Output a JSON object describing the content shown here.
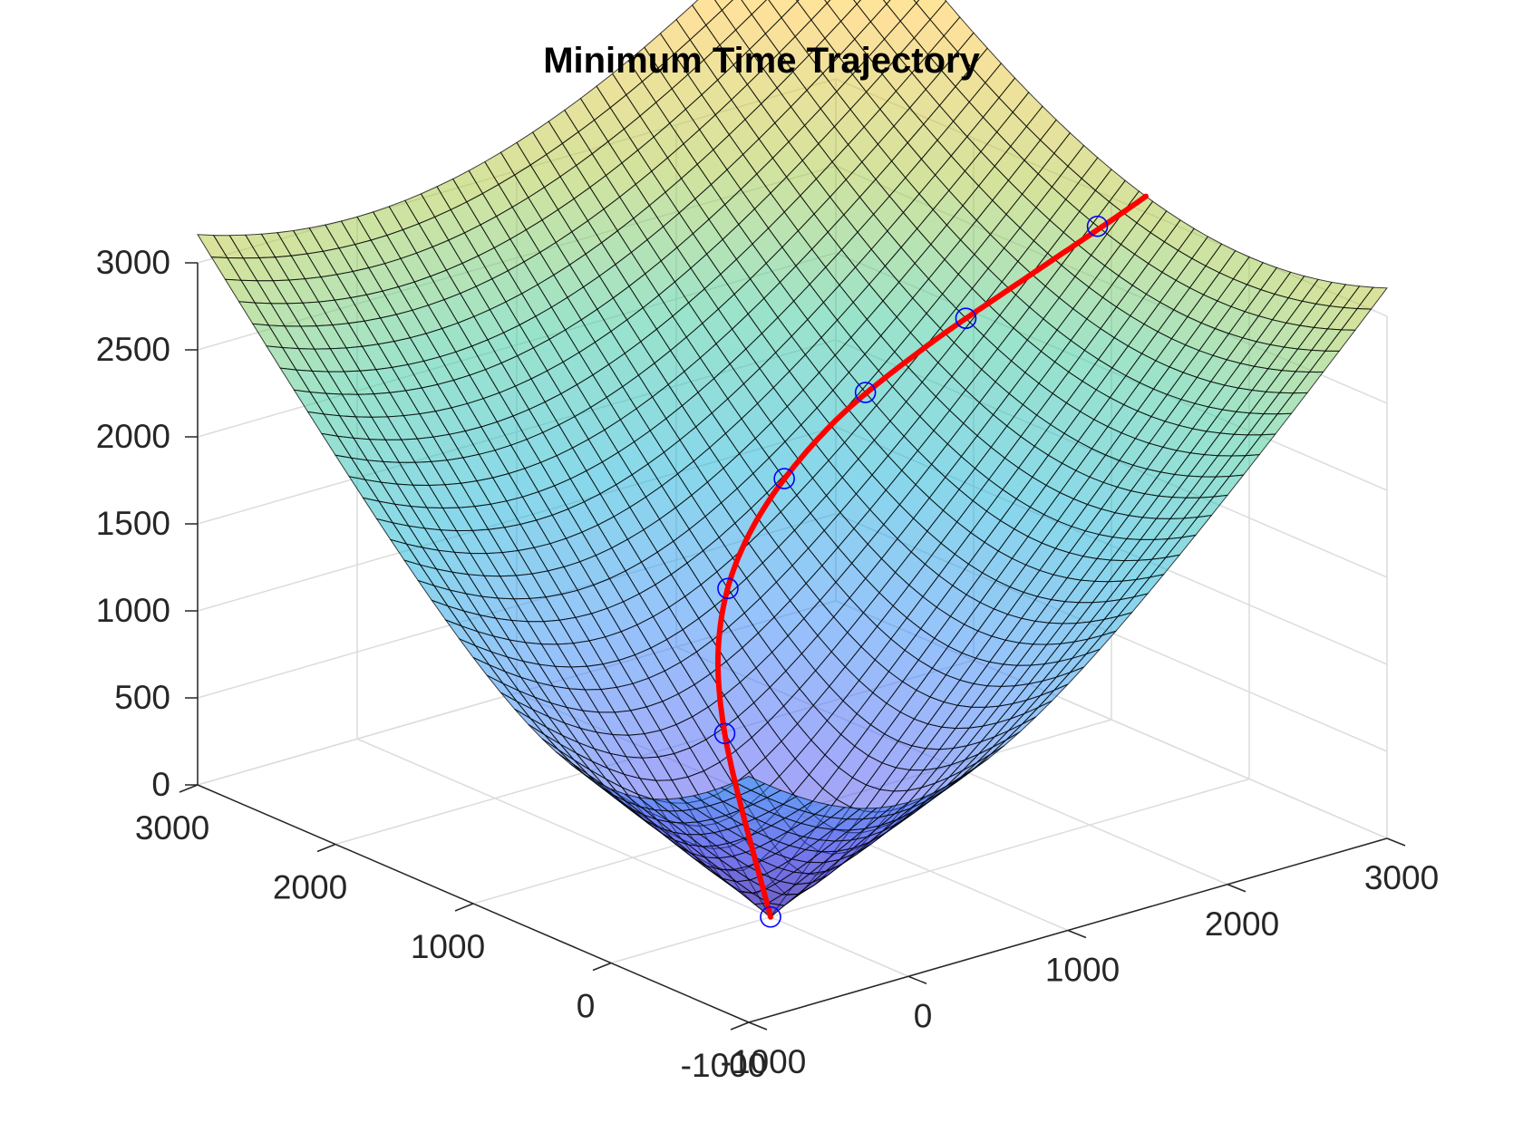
{
  "chart_data": {
    "type": "surface",
    "title": "Minimum Time Trajectory",
    "xlabel": "",
    "ylabel": "",
    "zlabel": "",
    "xlim": [
      -1000,
      3000
    ],
    "ylim": [
      -1000,
      3000
    ],
    "zlim": [
      0,
      3000
    ],
    "x_ticks": [
      "-1000",
      "0",
      "1000",
      "2000",
      "3000"
    ],
    "y_ticks": [
      "-1000",
      "0",
      "1000",
      "2000",
      "3000"
    ],
    "z_ticks": [
      "0",
      "500",
      "1000",
      "1500",
      "2000",
      "2500",
      "3000"
    ],
    "grid": true,
    "surface": {
      "description_function": "z = sqrt(x^2 + y^2)",
      "grid_divisions": 40,
      "colormap": "parula",
      "face_alpha": 0.5,
      "edge_color": "#000000",
      "corner_values": [
        {
          "x": -1000,
          "y": -1000,
          "z": 1414
        },
        {
          "x": 3000,
          "y": -1000,
          "z": 3162
        },
        {
          "x": -1000,
          "y": 3000,
          "z": 3162
        },
        {
          "x": 3000,
          "y": 3000,
          "z": 4243
        }
      ]
    },
    "trajectory": {
      "color": "#ff0000",
      "points": [
        {
          "x": 0,
          "y": 0
        },
        {
          "x": 300,
          "y": 680
        },
        {
          "x": 600,
          "y": 1050
        },
        {
          "x": 1000,
          "y": 1250
        },
        {
          "x": 1500,
          "y": 1300
        },
        {
          "x": 2000,
          "y": 1200
        },
        {
          "x": 2500,
          "y": 1000
        },
        {
          "x": 3000,
          "y": 750
        }
      ]
    },
    "markers": {
      "shape": "circle",
      "color": "#0000ff",
      "points": [
        {
          "x": 0,
          "y": 0
        },
        {
          "x": 300,
          "y": 680
        },
        {
          "x": 700,
          "y": 1120
        },
        {
          "x": 1200,
          "y": 1290
        },
        {
          "x": 1700,
          "y": 1280
        },
        {
          "x": 2200,
          "y": 1130
        },
        {
          "x": 2800,
          "y": 870
        }
      ]
    }
  }
}
